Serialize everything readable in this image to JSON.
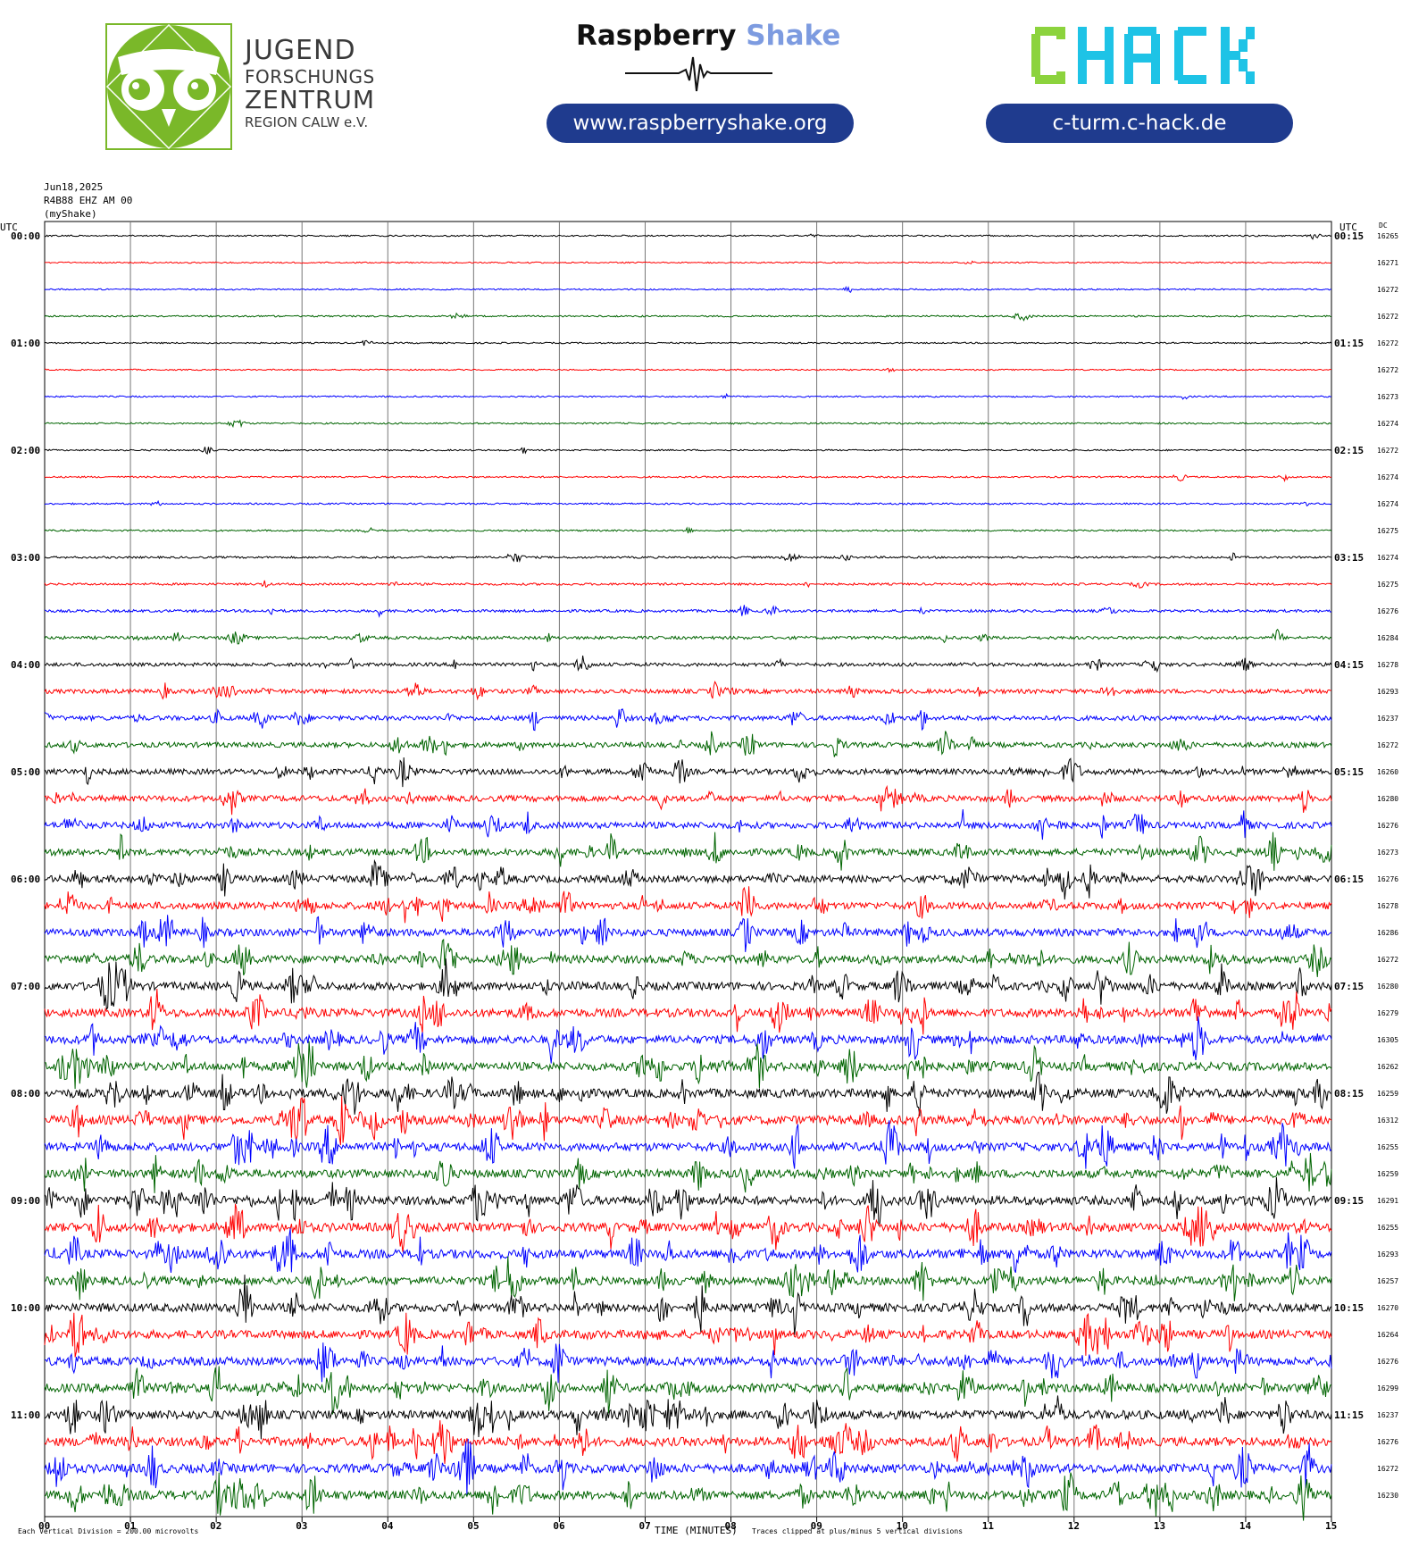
{
  "header": {
    "jfz_logo": {
      "line1": "JUGEND",
      "line2": "FORSCHUNGS",
      "line3": "ZENTRUM",
      "line4": "REGION CALW e.V."
    },
    "raspberry_shake": {
      "word1": "Raspberry",
      "word2": "Shake",
      "url": "www.raspberryshake.org"
    },
    "chack": {
      "logo_text": "CHACK",
      "url": "c-turm.c-hack.de"
    }
  },
  "colors": {
    "brand_blue": "#1f3b8e",
    "jfz_green": "#7ab829",
    "chack_green": "#8cd33d",
    "chack_cyan": "#1ec3e6",
    "traces": [
      "#000000",
      "#ff0000",
      "#0000ff",
      "#006400"
    ]
  },
  "chart_data": {
    "type": "line",
    "title_lines": [
      "Jun18,2025",
      "R4B88 EHZ AM 00",
      "(myShake)"
    ],
    "left_axis_title": "UTC",
    "right_axis_title": "UTC",
    "dc_title": "DC",
    "xlabel": "TIME (MINUTES)",
    "x_ticks": [
      "00",
      "01",
      "02",
      "03",
      "04",
      "05",
      "06",
      "07",
      "08",
      "09",
      "10",
      "11",
      "12",
      "13",
      "14",
      "15"
    ],
    "xlim": [
      0,
      15
    ],
    "minutes_per_line": 15,
    "grid": true,
    "footer_left": "Each Vertical Division =  200.00 microvolts",
    "footer_right": "Traces clipped at plus/minus 5 vertical divisions",
    "rows": [
      {
        "left": "00:00",
        "right": "00:15",
        "dc": "16265",
        "level": 0.05
      },
      {
        "left": "",
        "right": "",
        "dc": "16271",
        "level": 0.03
      },
      {
        "left": "",
        "right": "",
        "dc": "16272",
        "level": 0.04
      },
      {
        "left": "",
        "right": "",
        "dc": "16272",
        "level": 0.06
      },
      {
        "left": "01:00",
        "right": "01:15",
        "dc": "16272",
        "level": 0.04
      },
      {
        "left": "",
        "right": "",
        "dc": "16272",
        "level": 0.03
      },
      {
        "left": "",
        "right": "",
        "dc": "16273",
        "level": 0.05
      },
      {
        "left": "",
        "right": "",
        "dc": "16274",
        "level": 0.06
      },
      {
        "left": "02:00",
        "right": "02:15",
        "dc": "16272",
        "level": 0.05
      },
      {
        "left": "",
        "right": "",
        "dc": "16274",
        "level": 0.07
      },
      {
        "left": "",
        "right": "",
        "dc": "16274",
        "level": 0.07
      },
      {
        "left": "",
        "right": "",
        "dc": "16275",
        "level": 0.07
      },
      {
        "left": "03:00",
        "right": "03:15",
        "dc": "16274",
        "level": 0.12
      },
      {
        "left": "",
        "right": "",
        "dc": "16275",
        "level": 0.14
      },
      {
        "left": "",
        "right": "",
        "dc": "16276",
        "level": 0.2
      },
      {
        "left": "",
        "right": "",
        "dc": "16284",
        "level": 0.25
      },
      {
        "left": "04:00",
        "right": "04:15",
        "dc": "16278",
        "level": 0.3
      },
      {
        "left": "",
        "right": "",
        "dc": "16293",
        "level": 0.4
      },
      {
        "left": "",
        "right": "",
        "dc": "16237",
        "level": 0.45
      },
      {
        "left": "",
        "right": "",
        "dc": "16272",
        "level": 0.5
      },
      {
        "left": "05:00",
        "right": "05:15",
        "dc": "16260",
        "level": 0.55
      },
      {
        "left": "",
        "right": "",
        "dc": "16280",
        "level": 0.6
      },
      {
        "left": "",
        "right": "",
        "dc": "16276",
        "level": 0.65
      },
      {
        "left": "",
        "right": "",
        "dc": "16273",
        "level": 0.7
      },
      {
        "left": "06:00",
        "right": "06:15",
        "dc": "16276",
        "level": 0.75
      },
      {
        "left": "",
        "right": "",
        "dc": "16278",
        "level": 0.75
      },
      {
        "left": "",
        "right": "",
        "dc": "16286",
        "level": 0.8
      },
      {
        "left": "",
        "right": "",
        "dc": "16272",
        "level": 0.85
      },
      {
        "left": "07:00",
        "right": "07:15",
        "dc": "16280",
        "level": 0.85
      },
      {
        "left": "",
        "right": "",
        "dc": "16279",
        "level": 0.9
      },
      {
        "left": "",
        "right": "",
        "dc": "16305",
        "level": 0.9
      },
      {
        "left": "",
        "right": "",
        "dc": "16262",
        "level": 0.9
      },
      {
        "left": "08:00",
        "right": "08:15",
        "dc": "16259",
        "level": 0.95
      },
      {
        "left": "",
        "right": "",
        "dc": "16312",
        "level": 0.95
      },
      {
        "left": "",
        "right": "",
        "dc": "16255",
        "level": 0.9
      },
      {
        "left": "",
        "right": "",
        "dc": "16259",
        "level": 0.9
      },
      {
        "left": "09:00",
        "right": "09:15",
        "dc": "16291",
        "level": 0.95
      },
      {
        "left": "",
        "right": "",
        "dc": "16255",
        "level": 0.95
      },
      {
        "left": "",
        "right": "",
        "dc": "16293",
        "level": 0.95
      },
      {
        "left": "",
        "right": "",
        "dc": "16257",
        "level": 0.9
      },
      {
        "left": "10:00",
        "right": "10:15",
        "dc": "16270",
        "level": 0.9
      },
      {
        "left": "",
        "right": "",
        "dc": "16264",
        "level": 0.9
      },
      {
        "left": "",
        "right": "",
        "dc": "16276",
        "level": 0.9
      },
      {
        "left": "",
        "right": "",
        "dc": "16299",
        "level": 0.95
      },
      {
        "left": "11:00",
        "right": "11:15",
        "dc": "16237",
        "level": 0.95
      },
      {
        "left": "",
        "right": "",
        "dc": "16276",
        "level": 0.95
      },
      {
        "left": "",
        "right": "",
        "dc": "16272",
        "level": 0.95
      },
      {
        "left": "",
        "right": "",
        "dc": "16230",
        "level": 0.95
      }
    ]
  }
}
